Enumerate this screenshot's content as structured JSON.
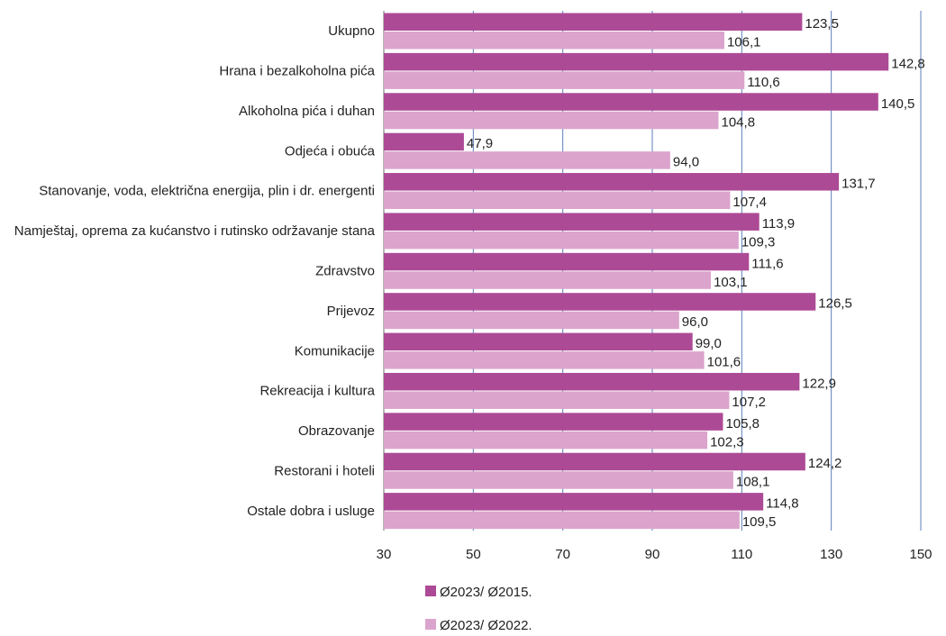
{
  "chart_data": {
    "type": "bar",
    "orientation": "horizontal",
    "categories": [
      "Ukupno",
      "Hrana i bezalkoholna pića",
      "Alkoholna pića i duhan",
      "Odjeća i obuća",
      "Stanovanje, voda, električna energija, plin i dr. energenti",
      "Namještaj, oprema za kućanstvo i rutinsko održavanje stana",
      "Zdravstvo",
      "Prijevoz",
      "Komunikacije",
      "Rekreacija i kultura",
      "Obrazovanje",
      "Restorani i hoteli",
      "Ostale dobra i usluge"
    ],
    "series": [
      {
        "name": "Ø2023/ Ø2015.",
        "color": "#ad4a96",
        "values": [
          123.5,
          142.8,
          140.5,
          47.9,
          131.7,
          113.9,
          111.6,
          126.5,
          99.0,
          122.9,
          105.8,
          124.2,
          114.8
        ],
        "labels": [
          "123,5",
          "142,8",
          "140,5",
          "47,9",
          "131,7",
          "113,9",
          "111,6",
          "126,5",
          "99,0",
          "122,9",
          "105,8",
          "124,2",
          "114,8"
        ]
      },
      {
        "name": "Ø2023/ Ø2022.",
        "color": "#dba4cc",
        "values": [
          106.1,
          110.6,
          104.8,
          94.0,
          107.4,
          109.3,
          103.1,
          96.0,
          101.6,
          107.2,
          102.3,
          108.1,
          109.5
        ],
        "labels": [
          "106,1",
          "110,6",
          "104,8",
          "94,0",
          "107,4",
          "109,3",
          "103,1",
          "96,0",
          "101,6",
          "107,2",
          "102,3",
          "108,1",
          "109,5"
        ]
      }
    ],
    "xlim": [
      30,
      150
    ],
    "xticks": [
      "30",
      "50",
      "70",
      "90",
      "110",
      "130",
      "150"
    ],
    "xtick_values": [
      30,
      50,
      70,
      90,
      110,
      130,
      150
    ],
    "grid": "vertical",
    "grid_color": "#5b7fb8",
    "legend_position": "bottom",
    "title": "",
    "xlabel": "",
    "ylabel": ""
  }
}
